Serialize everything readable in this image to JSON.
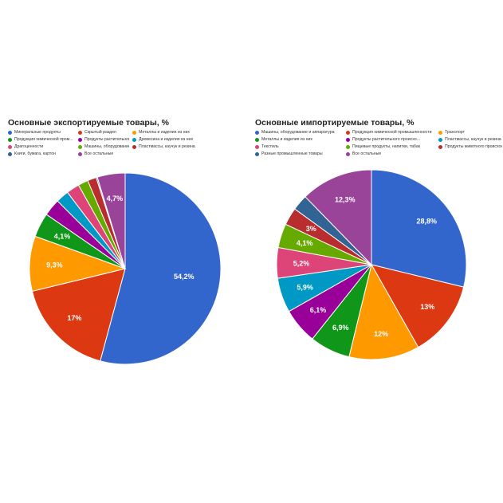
{
  "chart_data": [
    {
      "id": "export",
      "type": "pie",
      "title": "Основные экспортируемые товары, %",
      "legend": [
        "Минеральные продукты",
        "Скрытый раздел",
        "Металлы и изделия из них",
        "Продукция химической пром...",
        "Продукты растительного про...",
        "Древесина и изделия из нее",
        "Драгоценности",
        "Машины, оборудование и аппаратура",
        "Пластмассы, каучук и резина",
        "Книги, бумага, картон",
        "Все остальные"
      ],
      "colors": [
        "#3366cc",
        "#dc3912",
        "#ff9900",
        "#109618",
        "#990099",
        "#0099c6",
        "#dd4477",
        "#66aa00",
        "#b82e2e",
        "#316395",
        "#994499"
      ],
      "values": [
        54.2,
        17,
        9.3,
        4.1,
        2.9,
        2.2,
        2.2,
        1.7,
        1.5,
        0.2,
        4.7
      ],
      "labels": [
        "54,2%",
        "17%",
        "9,3%",
        "4,1%",
        "",
        "",
        "",
        "",
        "",
        "",
        "4,7%"
      ]
    },
    {
      "id": "import",
      "type": "pie",
      "title": "Основные импортируемые товары, %",
      "legend": [
        "Машины, оборудование и аппаратура",
        "Продукция химической промышленности",
        "Транспорт",
        "Металлы и изделия из них",
        "Продукты растительного происхо...",
        "Пластмассы, каучук и резина",
        "Текстиль",
        "Пищевые продукты, напитки, табак",
        "Продукты животного происхождения",
        "Разные промышленные товары",
        "Все остальные"
      ],
      "colors": [
        "#3366cc",
        "#dc3912",
        "#ff9900",
        "#109618",
        "#990099",
        "#0099c6",
        "#dd4477",
        "#66aa00",
        "#b82e2e",
        "#316395",
        "#994499"
      ],
      "values": [
        28.8,
        13,
        12,
        6.9,
        6.1,
        5.9,
        5.2,
        4.1,
        3,
        2.7,
        12.3
      ],
      "labels": [
        "28,8%",
        "13%",
        "12%",
        "6,9%",
        "6,1%",
        "5,9%",
        "5,2%",
        "4,1%",
        "3%",
        "",
        "12,3%"
      ]
    }
  ]
}
